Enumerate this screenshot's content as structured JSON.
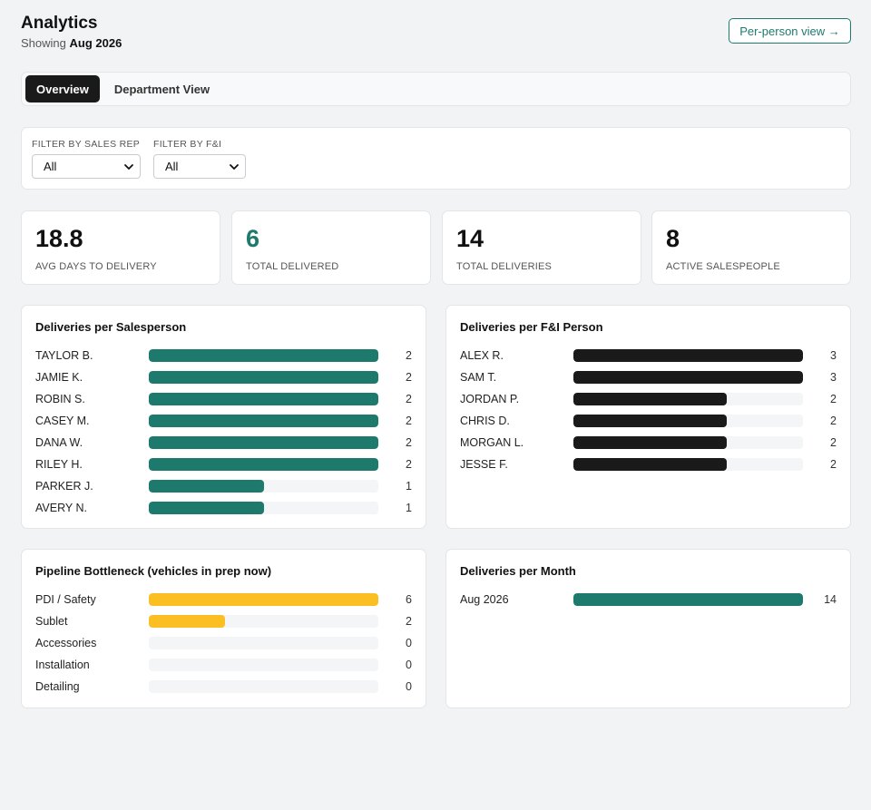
{
  "header": {
    "title": "Analytics",
    "showing_prefix": "Showing",
    "showing_period": "Aug 2026",
    "per_person_button": "Per-person view →"
  },
  "tabs": [
    {
      "label": "Overview",
      "active": true
    },
    {
      "label": "Department View",
      "active": false
    }
  ],
  "filters": {
    "sales_rep": {
      "label": "FILTER BY SALES REP",
      "value": "All"
    },
    "fi": {
      "label": "FILTER BY F&I",
      "value": "All"
    }
  },
  "stats": [
    {
      "value": "18.8",
      "label": "AVG DAYS TO DELIVERY",
      "accent": false
    },
    {
      "value": "6",
      "label": "TOTAL DELIVERED",
      "accent": true
    },
    {
      "value": "14",
      "label": "TOTAL DELIVERIES",
      "accent": false
    },
    {
      "value": "8",
      "label": "ACTIVE SALESPEOPLE",
      "accent": false
    }
  ],
  "colors": {
    "teal": "#1f7a6e",
    "black": "#1a1a1a",
    "yellow": "#fbbf24",
    "track": "#f4f5f6"
  },
  "cards": {
    "salesperson": {
      "title": "Deliveries per Salesperson",
      "max": 2,
      "color": "#1f7a6e",
      "rows": [
        {
          "label": "TAYLOR B.",
          "value": 2
        },
        {
          "label": "JAMIE K.",
          "value": 2
        },
        {
          "label": "ROBIN S.",
          "value": 2
        },
        {
          "label": "CASEY M.",
          "value": 2
        },
        {
          "label": "DANA W.",
          "value": 2
        },
        {
          "label": "RILEY H.",
          "value": 2
        },
        {
          "label": "PARKER J.",
          "value": 1
        },
        {
          "label": "AVERY N.",
          "value": 1
        }
      ]
    },
    "fi_person": {
      "title": "Deliveries per F&I Person",
      "max": 3,
      "color": "#1a1a1a",
      "rows": [
        {
          "label": "ALEX R.",
          "value": 3
        },
        {
          "label": "SAM T.",
          "value": 3
        },
        {
          "label": "JORDAN P.",
          "value": 2
        },
        {
          "label": "CHRIS D.",
          "value": 2
        },
        {
          "label": "MORGAN L.",
          "value": 2
        },
        {
          "label": "JESSE F.",
          "value": 2
        }
      ]
    },
    "pipeline": {
      "title": "Pipeline Bottleneck (vehicles in prep now)",
      "max": 6,
      "color": "#fbbf24",
      "rows": [
        {
          "label": "PDI / Safety",
          "value": 6
        },
        {
          "label": "Sublet",
          "value": 2
        },
        {
          "label": "Accessories",
          "value": 0
        },
        {
          "label": "Installation",
          "value": 0
        },
        {
          "label": "Detailing",
          "value": 0
        }
      ]
    },
    "month": {
      "title": "Deliveries per Month",
      "max": 14,
      "color": "#1f7a6e",
      "rows": [
        {
          "label": "Aug 2026",
          "value": 14
        }
      ]
    }
  }
}
